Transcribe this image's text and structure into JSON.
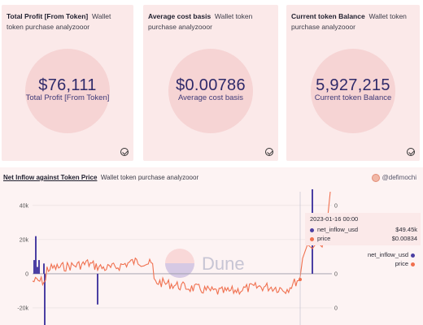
{
  "cards": [
    {
      "title": "Total Profit [From Token]",
      "subtitle": "Wallet token purchase analyzooor",
      "value": "$76,111",
      "label": "Total Profit [From Token]"
    },
    {
      "title": "Average cost basis",
      "subtitle": "Wallet token purchase analyzooor",
      "value": "$0.00786",
      "label": "Average cost basis"
    },
    {
      "title": "Current token Balance",
      "subtitle": "Wallet token purchase analyzooor",
      "value": "5,927,215",
      "label": "Current token Balance"
    }
  ],
  "chart": {
    "title": "Net Inflow against Token Price",
    "subtitle": "Wallet token purchase analyzooor",
    "credit": "@defimochi",
    "watermark": "Dune",
    "tooltip": {
      "title": "2023-01-16 00:00",
      "rows": [
        {
          "name": "net_inflow_usd",
          "value": "$49.45k",
          "color": "#4b3fa3"
        },
        {
          "name": "price",
          "value": "$0.00834",
          "color": "#f0704f"
        }
      ]
    },
    "legend": [
      {
        "name": "net_inflow_usd",
        "color": "#4b3fa3"
      },
      {
        "name": "price",
        "color": "#f0704f"
      }
    ],
    "colors": {
      "inflow": "#4b3fa3",
      "price": "#f0704f"
    }
  },
  "chart_data": {
    "type": "bar",
    "title": "Net Inflow against Token Price",
    "y_left_ticks": [
      "40k",
      "20k",
      "0",
      "-20k"
    ],
    "y_right_ticks": [
      "0",
      "0",
      "0",
      "0"
    ],
    "ylim": [
      -30000,
      48000
    ],
    "series": [
      {
        "name": "net_inflow_usd",
        "type": "bar",
        "values": [
          8000,
          22000,
          4000,
          8000,
          6000,
          -33000,
          -18000,
          49450
        ],
        "x_index": [
          2,
          4,
          6,
          8,
          14,
          15,
          80,
          344
        ]
      },
      {
        "name": "price",
        "type": "line",
        "scale": "right"
      }
    ]
  }
}
